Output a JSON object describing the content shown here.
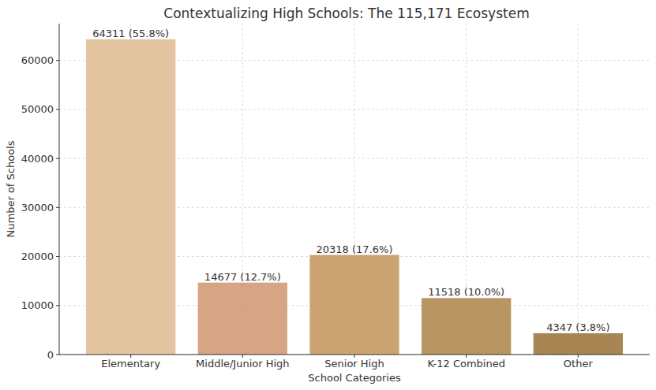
{
  "chart_data": {
    "type": "bar",
    "title": "Contextualizing High Schools: The 115,171 Ecosystem",
    "x_label": "School Categories",
    "y_label": "Number of Schools",
    "categories": [
      "Elementary",
      "Middle/Junior High",
      "Senior High",
      "K-12 Combined",
      "Other"
    ],
    "values": [
      64311,
      14677,
      20318,
      11518,
      4347
    ],
    "value_labels": [
      "64311 (55.8%)",
      "14677 (12.7%)",
      "20318 (17.6%)",
      "11518 (10.0%)",
      "4347 (3.8%)"
    ],
    "colors": [
      "#dfbf96",
      "#d29b78",
      "#c69a63",
      "#b08a52",
      "#9f7941"
    ],
    "ylim": [
      0,
      67500
    ],
    "yticks": [
      0,
      10000,
      20000,
      30000,
      40000,
      50000,
      60000
    ],
    "grid": true,
    "data_labels": true
  }
}
